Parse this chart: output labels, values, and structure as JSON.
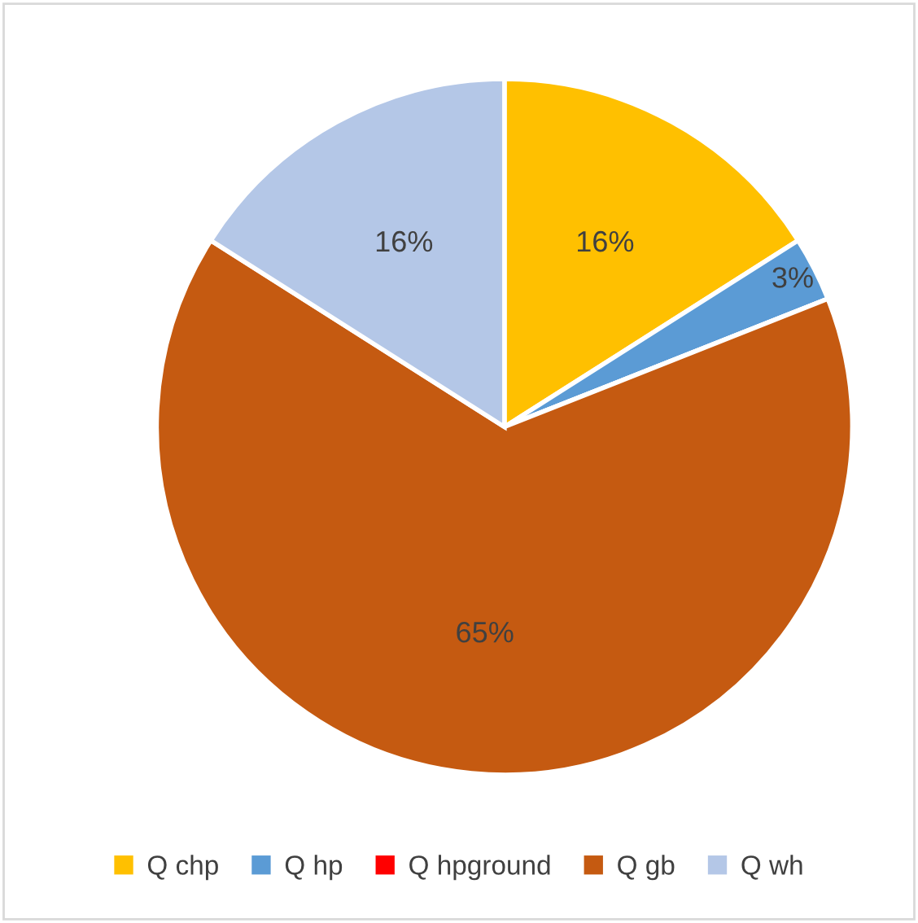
{
  "chart_data": {
    "type": "pie",
    "categories": [
      "Q chp",
      "Q hp",
      "Q hpground",
      "Q gb",
      "Q wh"
    ],
    "values": [
      16,
      3,
      0,
      65,
      16
    ],
    "colors": [
      "#ffc000",
      "#5b9bd5",
      "#ff0000",
      "#c55a11",
      "#b4c7e7"
    ],
    "value_labels": [
      "16%",
      "3%",
      null,
      "65%",
      "16%"
    ],
    "legend": "bottom"
  }
}
